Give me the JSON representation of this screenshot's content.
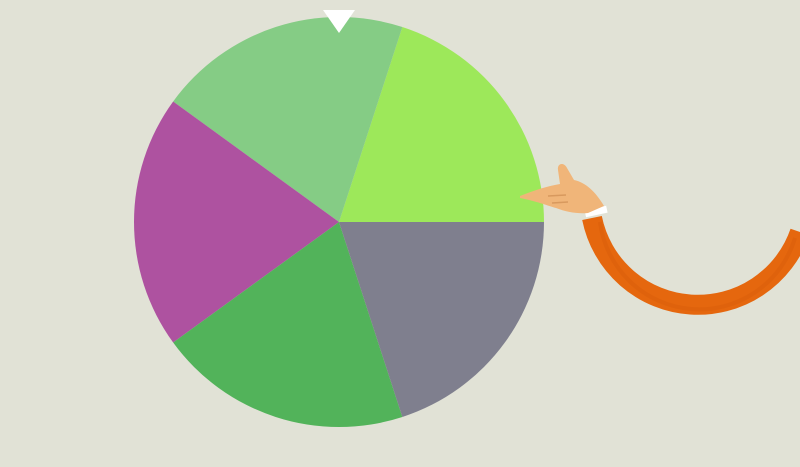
{
  "wheel": {
    "segment_count": 5,
    "segments": [
      {
        "color": "#9de85a"
      },
      {
        "color": "#85cc85"
      },
      {
        "color": "#ae52a0"
      },
      {
        "color": "#52b35a"
      },
      {
        "color": "#7f7f8e"
      }
    ]
  },
  "pointer": {
    "color": "#ffffff",
    "icon": "triangle-down-icon"
  },
  "pointing_hand": {
    "skin_color": "#f0b579",
    "sleeve_color": "#e5670e",
    "cuff_color": "#ffffff"
  },
  "background_color": "#e1e2d6"
}
